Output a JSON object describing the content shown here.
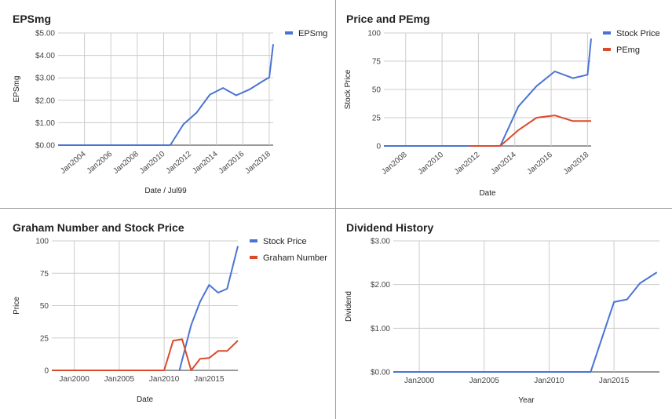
{
  "colors": {
    "blue": "#4a74d3",
    "red": "#db4a2b",
    "grid": "#cccccc",
    "baseline": "#333333"
  },
  "chart_data": [
    {
      "type": "line",
      "title": "EPSmg",
      "xlabel": "Date / Jul99",
      "ylabel": "EPSmg",
      "xlim": [
        2002,
        2018.3
      ],
      "ylim": [
        0,
        5
      ],
      "ytick_values": [
        0,
        1,
        2,
        3,
        4,
        5
      ],
      "ytick_labels": [
        "$0.00",
        "$1.00",
        "$2.00",
        "$3.00",
        "$4.00",
        "$5.00"
      ],
      "xtick_values": [
        2004,
        2006,
        2008,
        2010,
        2012,
        2014,
        2016,
        2018
      ],
      "xtick_labels": [
        "Jan2004",
        "Jan2006",
        "Jan2008",
        "Jan2010",
        "Jan2012",
        "Jan2014",
        "Jan2016",
        "Jan2018"
      ],
      "xtick_rotate": true,
      "legend": "right",
      "series": [
        {
          "name": "EPSmg",
          "color": "blue",
          "x": [
            2002,
            2004,
            2006,
            2008,
            2010,
            2010.5,
            2011.5,
            2012.5,
            2013.5,
            2014.5,
            2015.5,
            2016.5,
            2017.5,
            2018.0,
            2018.3
          ],
          "y": [
            0,
            0,
            0,
            0,
            0,
            0,
            0.93,
            1.45,
            2.25,
            2.55,
            2.22,
            2.48,
            2.85,
            3.02,
            4.5
          ]
        }
      ]
    },
    {
      "type": "line",
      "title": "Price and PEmg",
      "xlabel": "Date",
      "ylabel": "Stock Price",
      "xlim": [
        2006.8,
        2018.2
      ],
      "ylim": [
        0,
        100
      ],
      "ytick_values": [
        0,
        25,
        50,
        75,
        100
      ],
      "ytick_labels": [
        "0",
        "25",
        "50",
        "75",
        "100"
      ],
      "xtick_values": [
        2008,
        2010,
        2012,
        2014,
        2016,
        2018
      ],
      "xtick_labels": [
        "Jan2008",
        "Jan2010",
        "Jan2012",
        "Jan2014",
        "Jan2016",
        "Jan2018"
      ],
      "xtick_rotate": true,
      "legend": "right",
      "series": [
        {
          "name": "Stock Price",
          "color": "blue",
          "x": [
            2006.8,
            2008,
            2010,
            2012,
            2013.2,
            2014.2,
            2015.2,
            2016.2,
            2017.2,
            2018.0,
            2018.2
          ],
          "y": [
            0,
            0,
            0,
            0,
            0,
            35,
            53,
            66,
            60,
            63,
            95
          ]
        },
        {
          "name": "PEmg",
          "color": "red",
          "x": [
            2011.5,
            2012.5,
            2013.2,
            2014.2,
            2015.2,
            2016.2,
            2017.2,
            2018.2
          ],
          "y": [
            0,
            0,
            0,
            14,
            25,
            27,
            22,
            22
          ]
        }
      ]
    },
    {
      "type": "line",
      "title": "Graham Number and Stock Price",
      "xlabel": "Date",
      "ylabel": "Price",
      "xlim": [
        1997.5,
        2018.2
      ],
      "ylim": [
        0,
        100
      ],
      "ytick_values": [
        0,
        25,
        50,
        75,
        100
      ],
      "ytick_labels": [
        "0",
        "25",
        "50",
        "75",
        "100"
      ],
      "xtick_values": [
        2000,
        2005,
        2010,
        2015
      ],
      "xtick_labels": [
        "Jan2000",
        "Jan2005",
        "Jan2010",
        "Jan2015"
      ],
      "xtick_rotate": false,
      "legend": "right",
      "series": [
        {
          "name": "Stock Price",
          "color": "blue",
          "x": [
            2011.7,
            2013,
            2014,
            2015,
            2016,
            2017,
            2018.2
          ],
          "y": [
            0,
            35,
            53,
            66,
            60,
            63,
            96
          ]
        },
        {
          "name": "Graham Number",
          "color": "red",
          "x": [
            1997.5,
            2010,
            2011,
            2012,
            2013,
            2014,
            2015,
            2016,
            2017,
            2018.2
          ],
          "y": [
            0,
            0,
            23,
            24,
            0,
            9,
            9.5,
            15,
            15,
            23
          ]
        }
      ]
    },
    {
      "type": "line",
      "title": "Dividend History",
      "xlabel": "Year",
      "ylabel": "Dividend",
      "xlim": [
        1998,
        2018.5
      ],
      "ylim": [
        0,
        3
      ],
      "ytick_values": [
        0,
        1,
        2,
        3
      ],
      "ytick_labels": [
        "$0.00",
        "$1.00",
        "$2.00",
        "$3.00"
      ],
      "xtick_values": [
        2000,
        2005,
        2010,
        2015
      ],
      "xtick_labels": [
        "Jan2000",
        "Jan2005",
        "Jan2010",
        "Jan2015"
      ],
      "xtick_rotate": false,
      "legend": "none",
      "series": [
        {
          "name": "",
          "color": "blue",
          "x": [
            1998,
            2010,
            2013.2,
            2015,
            2016,
            2017,
            2018.3
          ],
          "y": [
            0,
            0,
            0,
            1.6,
            1.66,
            2.03,
            2.28
          ]
        }
      ]
    }
  ]
}
